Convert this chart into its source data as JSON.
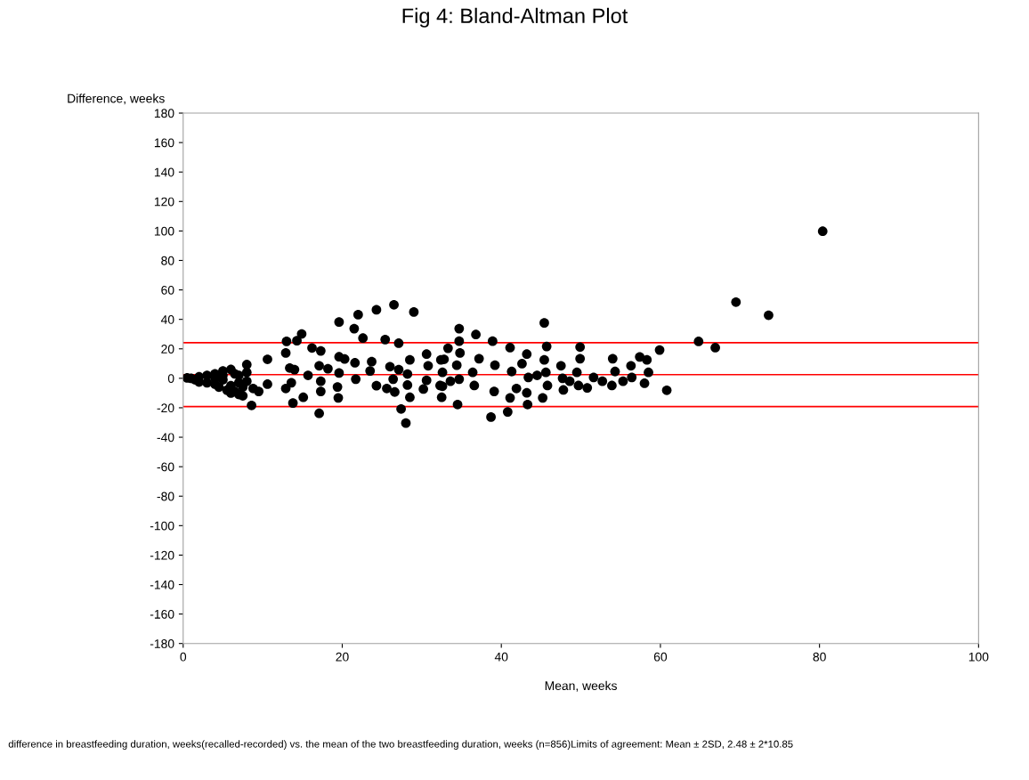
{
  "chart_data": {
    "type": "scatter",
    "title": "Fig 4: Bland-Altman Plot",
    "xlabel": "Mean, weeks",
    "ylabel": "Difference, weeks",
    "annotations": [
      "difference in breastfeeding duration, weeks(recalled-recorded) vs. the mean of the two breastfeeding duration, weeks (n=856)Limits of agreement: Mean ± 2SD, 2.48 ± 2*10.85"
    ],
    "xlim": [
      0,
      100
    ],
    "xticks": [
      0,
      20,
      40,
      60,
      80,
      100
    ],
    "ylim": [
      -180,
      180
    ],
    "yticks": [
      -180,
      -160,
      -140,
      -120,
      -100,
      -80,
      -60,
      -40,
      -20,
      0,
      20,
      40,
      60,
      80,
      100,
      120,
      140,
      160,
      180
    ],
    "grid": false,
    "legend": false,
    "marker": "circle",
    "ref_lines": [
      {
        "axis": "y",
        "value": 24.18,
        "color": "#ff0000"
      },
      {
        "axis": "y",
        "value": 2.48,
        "color": "#ff0000"
      },
      {
        "axis": "y",
        "value": -19.22,
        "color": "#ff0000"
      }
    ],
    "series": [
      {
        "color": "#000000",
        "x": [
          80.4,
          69.5,
          73.6,
          64.8,
          66.9,
          19.6,
          22.0,
          24.3,
          26.5,
          29.0,
          21.5,
          14.9,
          13.0,
          12.9,
          22.6,
          25.4,
          27.1,
          14.3,
          16.2,
          17.3,
          19.6,
          20.3,
          21.6,
          8.0,
          13.6,
          10.6,
          13.4,
          23.7,
          28.5,
          30.6,
          30.8,
          28.2,
          26.4,
          26.0,
          27.1,
          23.5,
          24.3,
          25.6,
          26.6,
          28.2,
          28.5,
          27.4,
          28.0,
          30.2,
          32.5,
          30.6,
          32.8,
          32.6,
          17.1,
          18.2,
          19.6,
          21.7,
          17.3,
          19.4,
          17.3,
          19.5,
          15.1,
          17.1,
          14.0,
          15.7,
          13.8,
          12.9,
          10.6,
          8.8,
          9.5,
          7.5,
          8.6,
          1.0,
          1.5,
          2.0,
          3.0,
          3.0,
          4.0,
          4.0,
          4.5,
          5.0,
          5.0,
          5.5,
          6.0,
          6.0,
          6.5,
          6.5,
          7.0,
          7.0,
          5.0,
          4.0,
          6.0,
          7.5,
          8.0,
          2.0,
          0.5,
          8.0,
          7.0,
          34.7,
          34.7,
          34.8,
          34.4,
          34.7,
          34.5,
          33.3,
          32.4,
          32.6,
          32.3,
          33.6,
          36.8,
          37.2,
          36.4,
          41.9,
          36.6,
          38.9,
          39.2,
          39.1,
          38.7,
          41.1,
          41.3,
          41.1,
          40.8,
          42.6,
          43.2,
          43.4,
          43.2,
          43.3,
          44.5,
          45.4,
          45.7,
          45.4,
          45.6,
          45.8,
          45.2,
          47.5,
          47.7,
          47.8,
          48.6,
          49.9,
          49.9,
          49.5,
          49.7,
          50.8,
          51.6,
          52.7,
          54.0,
          54.3,
          53.9,
          55.3,
          56.3,
          56.4,
          57.4,
          58.3,
          58.5,
          58.0,
          59.9,
          60.8
        ],
        "values": [
          99.8,
          51.7,
          42.8,
          25.0,
          20.8,
          38.2,
          43.2,
          46.5,
          49.9,
          45.0,
          33.7,
          30.1,
          25.1,
          17.2,
          27.3,
          26.3,
          23.8,
          25.5,
          20.6,
          18.6,
          14.6,
          13.1,
          10.5,
          9.3,
          -3.0,
          12.9,
          7.0,
          11.3,
          12.5,
          16.4,
          8.5,
          2.9,
          -0.6,
          7.9,
          5.9,
          5.0,
          -5.0,
          -6.9,
          -9.3,
          -4.6,
          -12.9,
          -20.8,
          -30.4,
          -7.3,
          -12.9,
          -1.4,
          12.9,
          -5.4,
          8.5,
          6.5,
          3.6,
          -0.6,
          -2.0,
          -5.9,
          -8.9,
          -13.3,
          -12.9,
          -23.8,
          5.9,
          2.0,
          -16.8,
          -6.9,
          -4.0,
          -6.9,
          -8.9,
          -11.9,
          -18.4,
          0,
          -1,
          1,
          2,
          -3,
          3,
          -4,
          -6,
          5,
          -1,
          -8,
          6,
          -10,
          3,
          -9,
          -3,
          -11,
          2,
          0,
          -5,
          -6,
          -2,
          -2.5,
          0.3,
          4,
          2,
          33.7,
          25.2,
          17.2,
          8.9,
          -0.6,
          -17.8,
          20.4,
          12.5,
          4.0,
          -4.9,
          -2.0,
          29.7,
          13.3,
          4.0,
          -6.9,
          -4.9,
          25.2,
          8.9,
          -8.9,
          -26.3,
          20.8,
          4.6,
          -13.3,
          -22.8,
          9.9,
          16.4,
          0.6,
          -9.9,
          -17.8,
          2.0,
          37.6,
          21.6,
          12.5,
          4.0,
          -4.9,
          -13.3,
          8.5,
          0,
          -7.9,
          -2.0,
          21.2,
          13.3,
          4.0,
          -4.9,
          -6.5,
          0.6,
          -2.0,
          13.3,
          4.6,
          -4.9,
          -2.0,
          8.5,
          0.6,
          14.5,
          12.5,
          4.0,
          -3.4,
          19.2,
          -8.1
        ]
      }
    ]
  }
}
